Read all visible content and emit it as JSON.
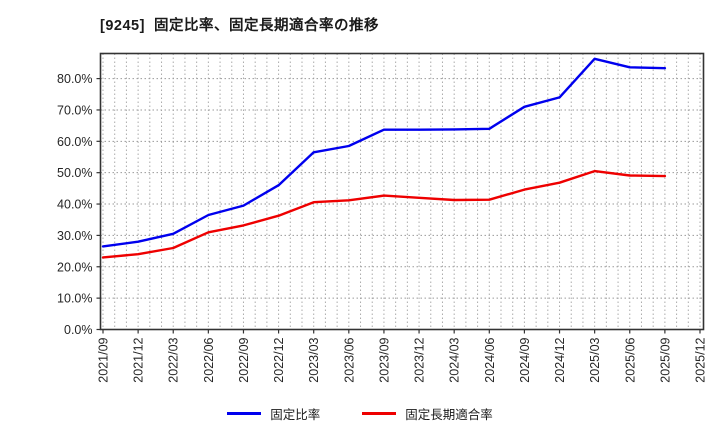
{
  "title": "[9245]  固定比率、固定長期適合率の推移",
  "legend": [
    {
      "label": "固定比率",
      "color": "#0000ee"
    },
    {
      "label": "固定長期適合率",
      "color": "#ee0000"
    }
  ],
  "chart_data": {
    "type": "line",
    "title": "[9245]  固定比率、固定長期適合率の推移",
    "x_labels": [
      "2021/09",
      "2021/12",
      "2022/03",
      "2022/06",
      "2022/09",
      "2022/12",
      "2023/03",
      "2023/06",
      "2023/09",
      "2023/12",
      "2024/03",
      "2024/06",
      "2024/09",
      "2024/12",
      "2025/03",
      "2025/06",
      "2025/09",
      "2025/12"
    ],
    "y_tick_values": [
      0,
      10,
      20,
      30,
      40,
      50,
      60,
      70,
      80
    ],
    "y_tick_labels": [
      "0.0%",
      "10.0%",
      "20.0%",
      "30.0%",
      "40.0%",
      "50.0%",
      "60.0%",
      "70.0%",
      "80.0%"
    ],
    "ylim": [
      0,
      88
    ],
    "grid": "dotted gray; horizontal every 10%, vertical monthly",
    "legend_position": "bottom-center",
    "series": [
      {
        "name": "固定比率",
        "color": "#0000ee",
        "values": [
          26.5,
          28.0,
          30.5,
          36.5,
          39.5,
          46.0,
          56.5,
          58.5,
          63.7,
          63.7,
          63.8,
          64.0,
          71.0,
          74.0,
          86.3,
          83.6,
          83.3
        ]
      },
      {
        "name": "固定長期適合率",
        "color": "#ee0000",
        "values": [
          23.0,
          24.0,
          26.0,
          31.0,
          33.2,
          36.3,
          40.6,
          41.2,
          42.7,
          42.0,
          41.3,
          41.4,
          44.6,
          46.8,
          50.5,
          49.1,
          48.9
        ]
      }
    ]
  }
}
